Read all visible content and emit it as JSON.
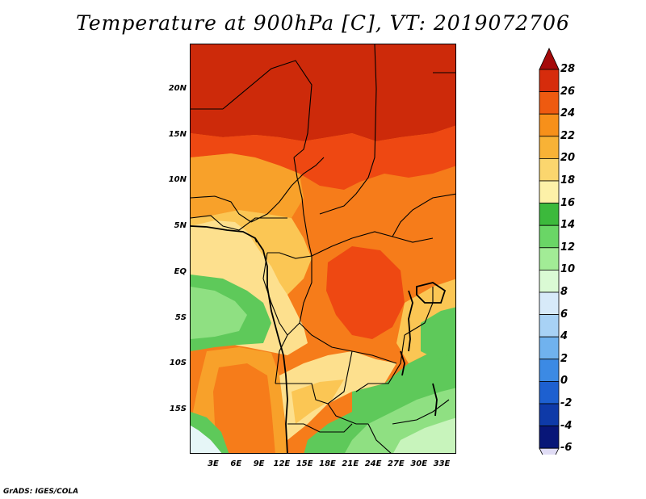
{
  "title": "Temperature at 900hPa [C], VT: 2019072706",
  "credit": "GrADS: IGES/COLA",
  "lat_labels": [
    "20N",
    "15N",
    "10N",
    "5N",
    "EQ",
    "5S",
    "10S",
    "15S"
  ],
  "lon_labels": [
    "3E",
    "6E",
    "9E",
    "12E",
    "15E",
    "18E",
    "21E",
    "24E",
    "27E",
    "30E",
    "33E"
  ],
  "colorbar": {
    "labels": [
      "28",
      "26",
      "24",
      "22",
      "20",
      "18",
      "16",
      "14",
      "12",
      "10",
      "8",
      "6",
      "4",
      "2",
      "0",
      "-2",
      "-4",
      "-6"
    ],
    "colors": [
      "#a50a0a",
      "#d62c0c",
      "#ee5a10",
      "#f7901a",
      "#f8b236",
      "#fbd66e",
      "#fdf1a8",
      "#3cb93c",
      "#6ad666",
      "#a2ec96",
      "#dafad4",
      "#d7eaf9",
      "#a8d2f5",
      "#70b2ee",
      "#3c8ae4",
      "#1d60d0",
      "#0e3aa8",
      "#081678",
      "#e0dcf5"
    ]
  },
  "map_extent": {
    "lon": [
      0,
      35
    ],
    "lat": [
      -19,
      24
    ]
  },
  "field_colors": {
    "t27": "#cd2a0a",
    "t25": "#ee4812",
    "t23": "#f67c1a",
    "t21": "#f8a12a",
    "t19": "#fbc654",
    "t17": "#fde08e",
    "t16": "#fdf0a8",
    "t13": "#5ec95a",
    "t11": "#8fe082",
    "t9": "#c8f4bc",
    "t7": "#e6f6f7"
  }
}
